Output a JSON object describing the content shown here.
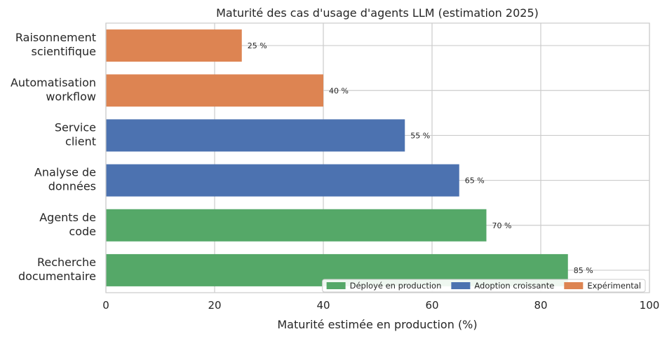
{
  "chart_data": {
    "type": "bar",
    "orientation": "horizontal",
    "title": "Maturité des cas d'usage d'agents LLM (estimation 2025)",
    "xlabel": "Maturité estimée en production (%)",
    "ylabel": "",
    "xlim": [
      0,
      100
    ],
    "xticks": [
      "0",
      "20",
      "40",
      "60",
      "80",
      "100"
    ],
    "grid": true,
    "legend_position": "lower-right",
    "categories": [
      [
        "Recherche",
        "documentaire"
      ],
      [
        "Agents de",
        "code"
      ],
      [
        "Analyse de",
        "données"
      ],
      [
        "Service",
        "client"
      ],
      [
        "Automatisation",
        "workflow"
      ],
      [
        "Raisonnement",
        "scientifique"
      ]
    ],
    "values": [
      85,
      70,
      65,
      55,
      40,
      25
    ],
    "value_labels": [
      "85 %",
      "70 %",
      "65 %",
      "55 %",
      "40 %",
      "25 %"
    ],
    "groups": [
      "deployed",
      "deployed",
      "adoption",
      "adoption",
      "experimental",
      "experimental"
    ],
    "legend": [
      {
        "key": "deployed",
        "label": "Déployé en production",
        "color": "#55a868"
      },
      {
        "key": "adoption",
        "label": "Adoption croissante",
        "color": "#4c72b0"
      },
      {
        "key": "experimental",
        "label": "Expérimental",
        "color": "#dd8452"
      }
    ]
  }
}
